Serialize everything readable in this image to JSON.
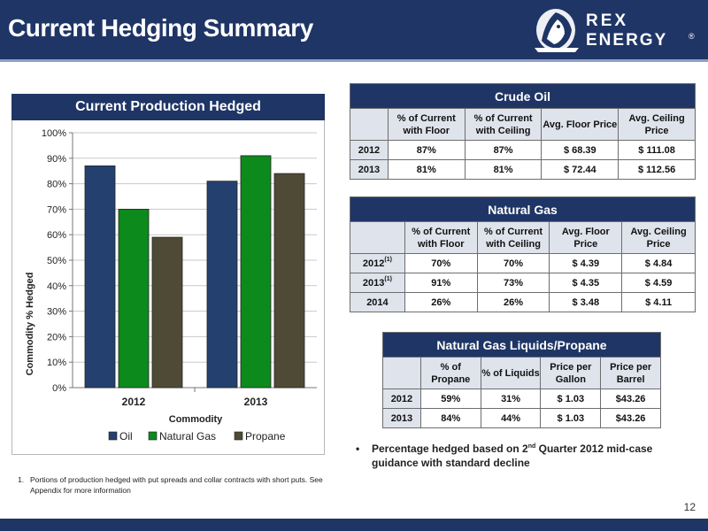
{
  "header": {
    "title": "Current Hedging Summary",
    "logo_text_top": "REX",
    "logo_text_bottom": "ENERGY",
    "logo_mark": "®"
  },
  "page_number": "12",
  "chart_panel": {
    "title": "Current Production Hedged"
  },
  "chart_data": {
    "type": "bar",
    "categories": [
      "2012",
      "2013"
    ],
    "series": [
      {
        "name": "Oil",
        "values": [
          87,
          81
        ],
        "color": "#24406e"
      },
      {
        "name": "Natural Gas",
        "values": [
          70,
          91
        ],
        "color": "#0d8a1c"
      },
      {
        "name": "Propane",
        "values": [
          59,
          84
        ],
        "color": "#4f4a35"
      }
    ],
    "xlabel": "Commodity",
    "ylabel": "Commodity % Hedged",
    "ylim": [
      0,
      100
    ],
    "yticks": [
      "0%",
      "10%",
      "20%",
      "30%",
      "40%",
      "50%",
      "60%",
      "70%",
      "80%",
      "90%",
      "100%"
    ],
    "grid": true,
    "legend": "bottom"
  },
  "footnote": {
    "number": "1.",
    "text": "Portions of production hedged with put spreads and collar contracts with short puts.  See Appendix for more information"
  },
  "tables": {
    "crude_oil": {
      "title": "Crude Oil",
      "headers": [
        "% of Current with Floor",
        "% of Current with Ceiling",
        "Avg. Floor Price",
        "Avg. Ceiling Price"
      ],
      "rows": [
        {
          "year": "2012",
          "sup": "",
          "cells": [
            "87%",
            "87%",
            "$ 68.39",
            "$ 111.08"
          ]
        },
        {
          "year": "2013",
          "sup": "",
          "cells": [
            "81%",
            "81%",
            "$ 72.44",
            "$ 112.56"
          ]
        }
      ]
    },
    "natural_gas": {
      "title": "Natural Gas",
      "headers": [
        "% of Current with Floor",
        "% of Current with Ceiling",
        "Avg. Floor Price",
        "Avg. Ceiling Price"
      ],
      "rows": [
        {
          "year": "2012",
          "sup": "(1)",
          "cells": [
            "70%",
            "70%",
            "$ 4.39",
            "$ 4.84"
          ]
        },
        {
          "year": "2013",
          "sup": "(1)",
          "cells": [
            "91%",
            "73%",
            "$ 4.35",
            "$ 4.59"
          ]
        },
        {
          "year": "2014",
          "sup": "",
          "cells": [
            "26%",
            "26%",
            "$ 3.48",
            "$ 4.11"
          ]
        }
      ]
    },
    "ngl_propane": {
      "title": "Natural Gas Liquids/Propane",
      "headers": [
        "% of Propane",
        "% of Liquids",
        "Price per Gallon",
        "Price per Barrel"
      ],
      "rows": [
        {
          "year": "2012",
          "sup": "",
          "cells": [
            "59%",
            "31%",
            "$ 1.03",
            "$43.26"
          ]
        },
        {
          "year": "2013",
          "sup": "",
          "cells": [
            "84%",
            "44%",
            "$ 1.03",
            "$43.26"
          ]
        }
      ]
    }
  },
  "bullet": {
    "marker": "•",
    "text_before": "Percentage hedged based on 2",
    "sup": "nd",
    "text_after": " Quarter 2012 mid-case guidance with standard decline"
  }
}
